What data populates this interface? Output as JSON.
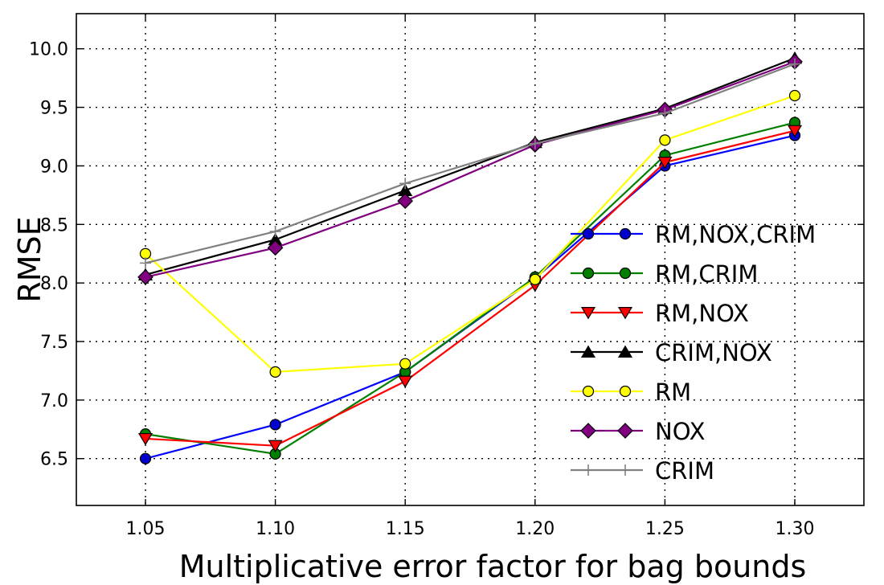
{
  "chart_data": {
    "type": "line",
    "title": "",
    "xlabel": "Multiplicative error factor for bag bounds",
    "ylabel": "RMSE",
    "x": [
      1.05,
      1.1,
      1.15,
      1.2,
      1.25,
      1.3
    ],
    "x_tick_labels": [
      "1.05",
      "1.10",
      "1.15",
      "1.20",
      "1.25",
      "1.30"
    ],
    "y_ticks": [
      6.5,
      7.0,
      7.5,
      8.0,
      8.5,
      9.0,
      9.5,
      10.0
    ],
    "y_tick_labels": [
      "6.5",
      "7.0",
      "7.5",
      "8.0",
      "8.5",
      "9.0",
      "9.5",
      "10.0"
    ],
    "xlim": [
      1.05,
      1.3
    ],
    "ylim": [
      6.1,
      10.3
    ],
    "grid": true,
    "legend_position": "right",
    "series": [
      {
        "name": "RM,NOX,CRIM",
        "color": "#0000ff",
        "marker": "circle",
        "marker_fill": "#0000cc",
        "values": [
          6.5,
          6.79,
          7.24,
          8.04,
          9.0,
          9.26
        ]
      },
      {
        "name": "RM,CRIM",
        "color": "#007f00",
        "marker": "circle",
        "marker_fill": "#007f00",
        "values": [
          6.71,
          6.54,
          7.24,
          8.05,
          9.09,
          9.37
        ]
      },
      {
        "name": "RM,NOX",
        "color": "#ff0000",
        "marker": "triangle-down",
        "marker_fill": "#ff0000",
        "values": [
          6.67,
          6.61,
          7.16,
          7.98,
          9.03,
          9.3
        ]
      },
      {
        "name": "CRIM,NOX",
        "color": "#000000",
        "marker": "triangle-up",
        "marker_fill": "#000000",
        "values": [
          8.07,
          8.37,
          8.79,
          9.2,
          9.49,
          9.92
        ]
      },
      {
        "name": "RM",
        "color": "#ffff00",
        "marker": "circle",
        "marker_fill": "#ffff00",
        "values": [
          8.25,
          7.24,
          7.31,
          8.03,
          9.22,
          9.6
        ]
      },
      {
        "name": "NOX",
        "color": "#800080",
        "marker": "diamond",
        "marker_fill": "#800080",
        "values": [
          8.05,
          8.3,
          8.7,
          9.18,
          9.48,
          9.89
        ]
      },
      {
        "name": "CRIM",
        "color": "#808080",
        "marker": "plus",
        "marker_fill": "#808080",
        "values": [
          8.17,
          8.44,
          8.85,
          9.19,
          9.45,
          9.87
        ]
      }
    ]
  }
}
